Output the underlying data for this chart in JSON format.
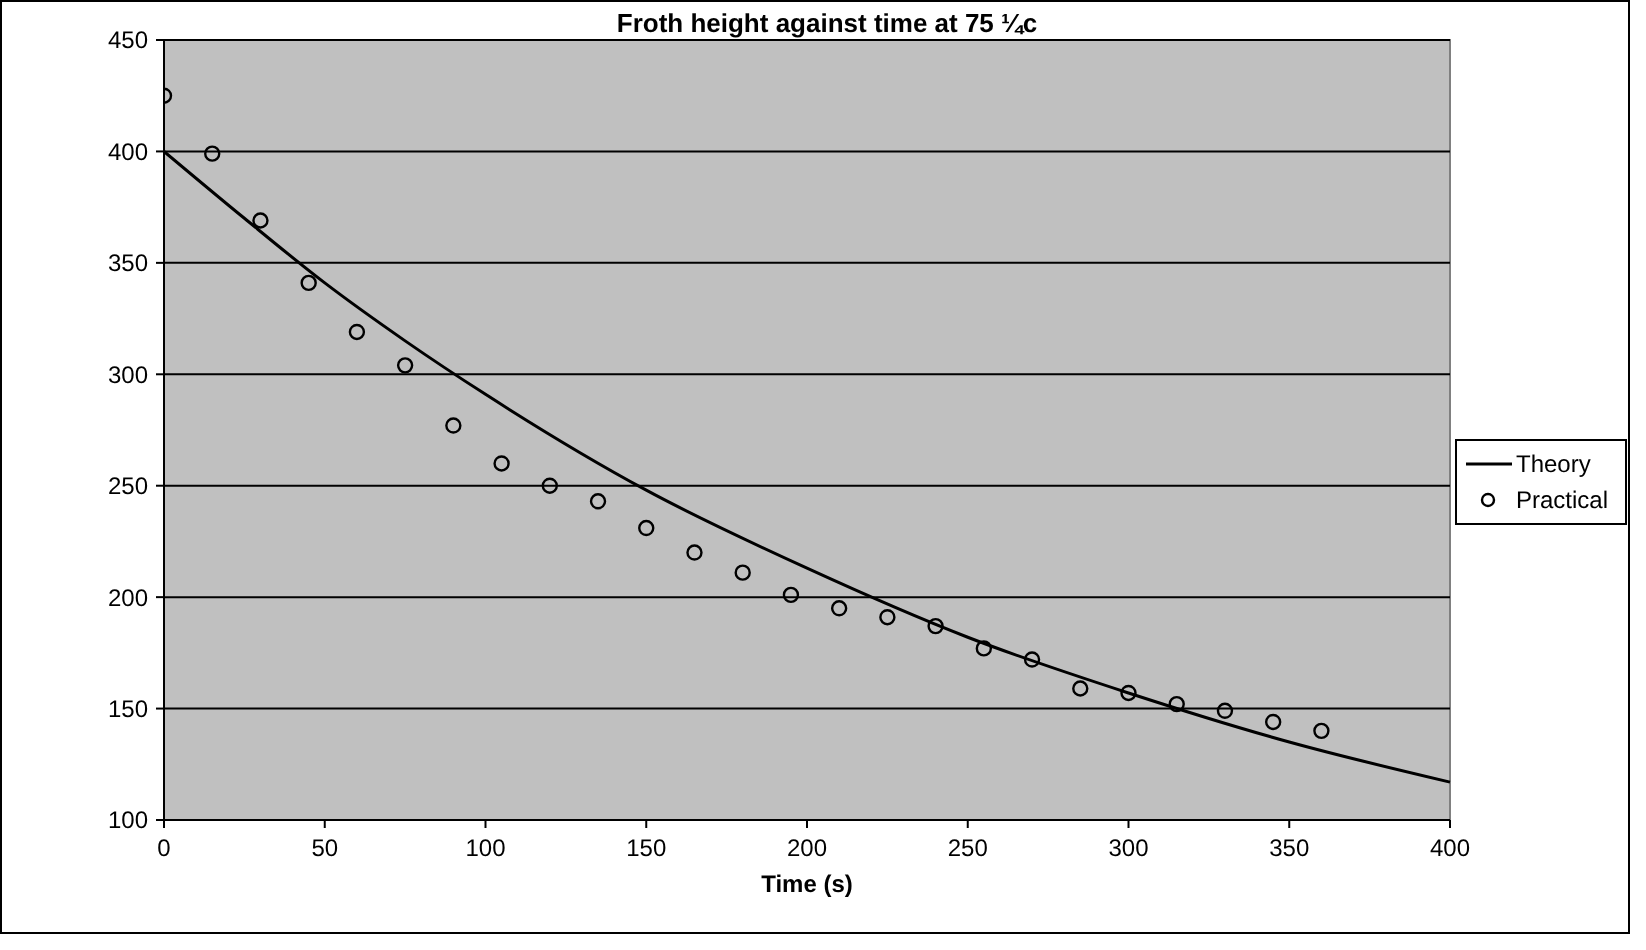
{
  "chart_data": {
    "type": "scatter",
    "title": "Froth height against time at 75 ¼c",
    "xlabel": "Time (s)",
    "xlim": [
      0,
      400
    ],
    "xticks": [
      0,
      50,
      100,
      150,
      200,
      250,
      300,
      350,
      400
    ],
    "ylim": [
      100,
      450
    ],
    "yticks": [
      100,
      150,
      200,
      250,
      300,
      350,
      400,
      450
    ],
    "grid": "y",
    "legend": "right",
    "series": [
      {
        "name": "Theory",
        "type": "line",
        "color": "#000000",
        "marker": "none",
        "line_style": "solid",
        "x": [
          0,
          25,
          50,
          75,
          100,
          150,
          200,
          250,
          300,
          350,
          400
        ],
        "values": [
          400,
          370,
          341,
          315,
          291,
          248,
          213,
          182,
          157,
          135,
          117
        ]
      },
      {
        "name": "Practical",
        "color": "#000000",
        "marker": "circle",
        "x": [
          0,
          15,
          30,
          45,
          60,
          75,
          90,
          105,
          120,
          135,
          150,
          165,
          180,
          195,
          210,
          225,
          240,
          255,
          270,
          285,
          300,
          315,
          330,
          345,
          360
        ],
        "values": [
          425,
          399,
          369,
          341,
          319,
          304,
          277,
          260,
          250,
          243,
          231,
          220,
          211,
          201,
          195,
          191,
          187,
          177,
          172,
          159,
          157,
          152,
          149,
          144,
          140
        ]
      }
    ]
  }
}
